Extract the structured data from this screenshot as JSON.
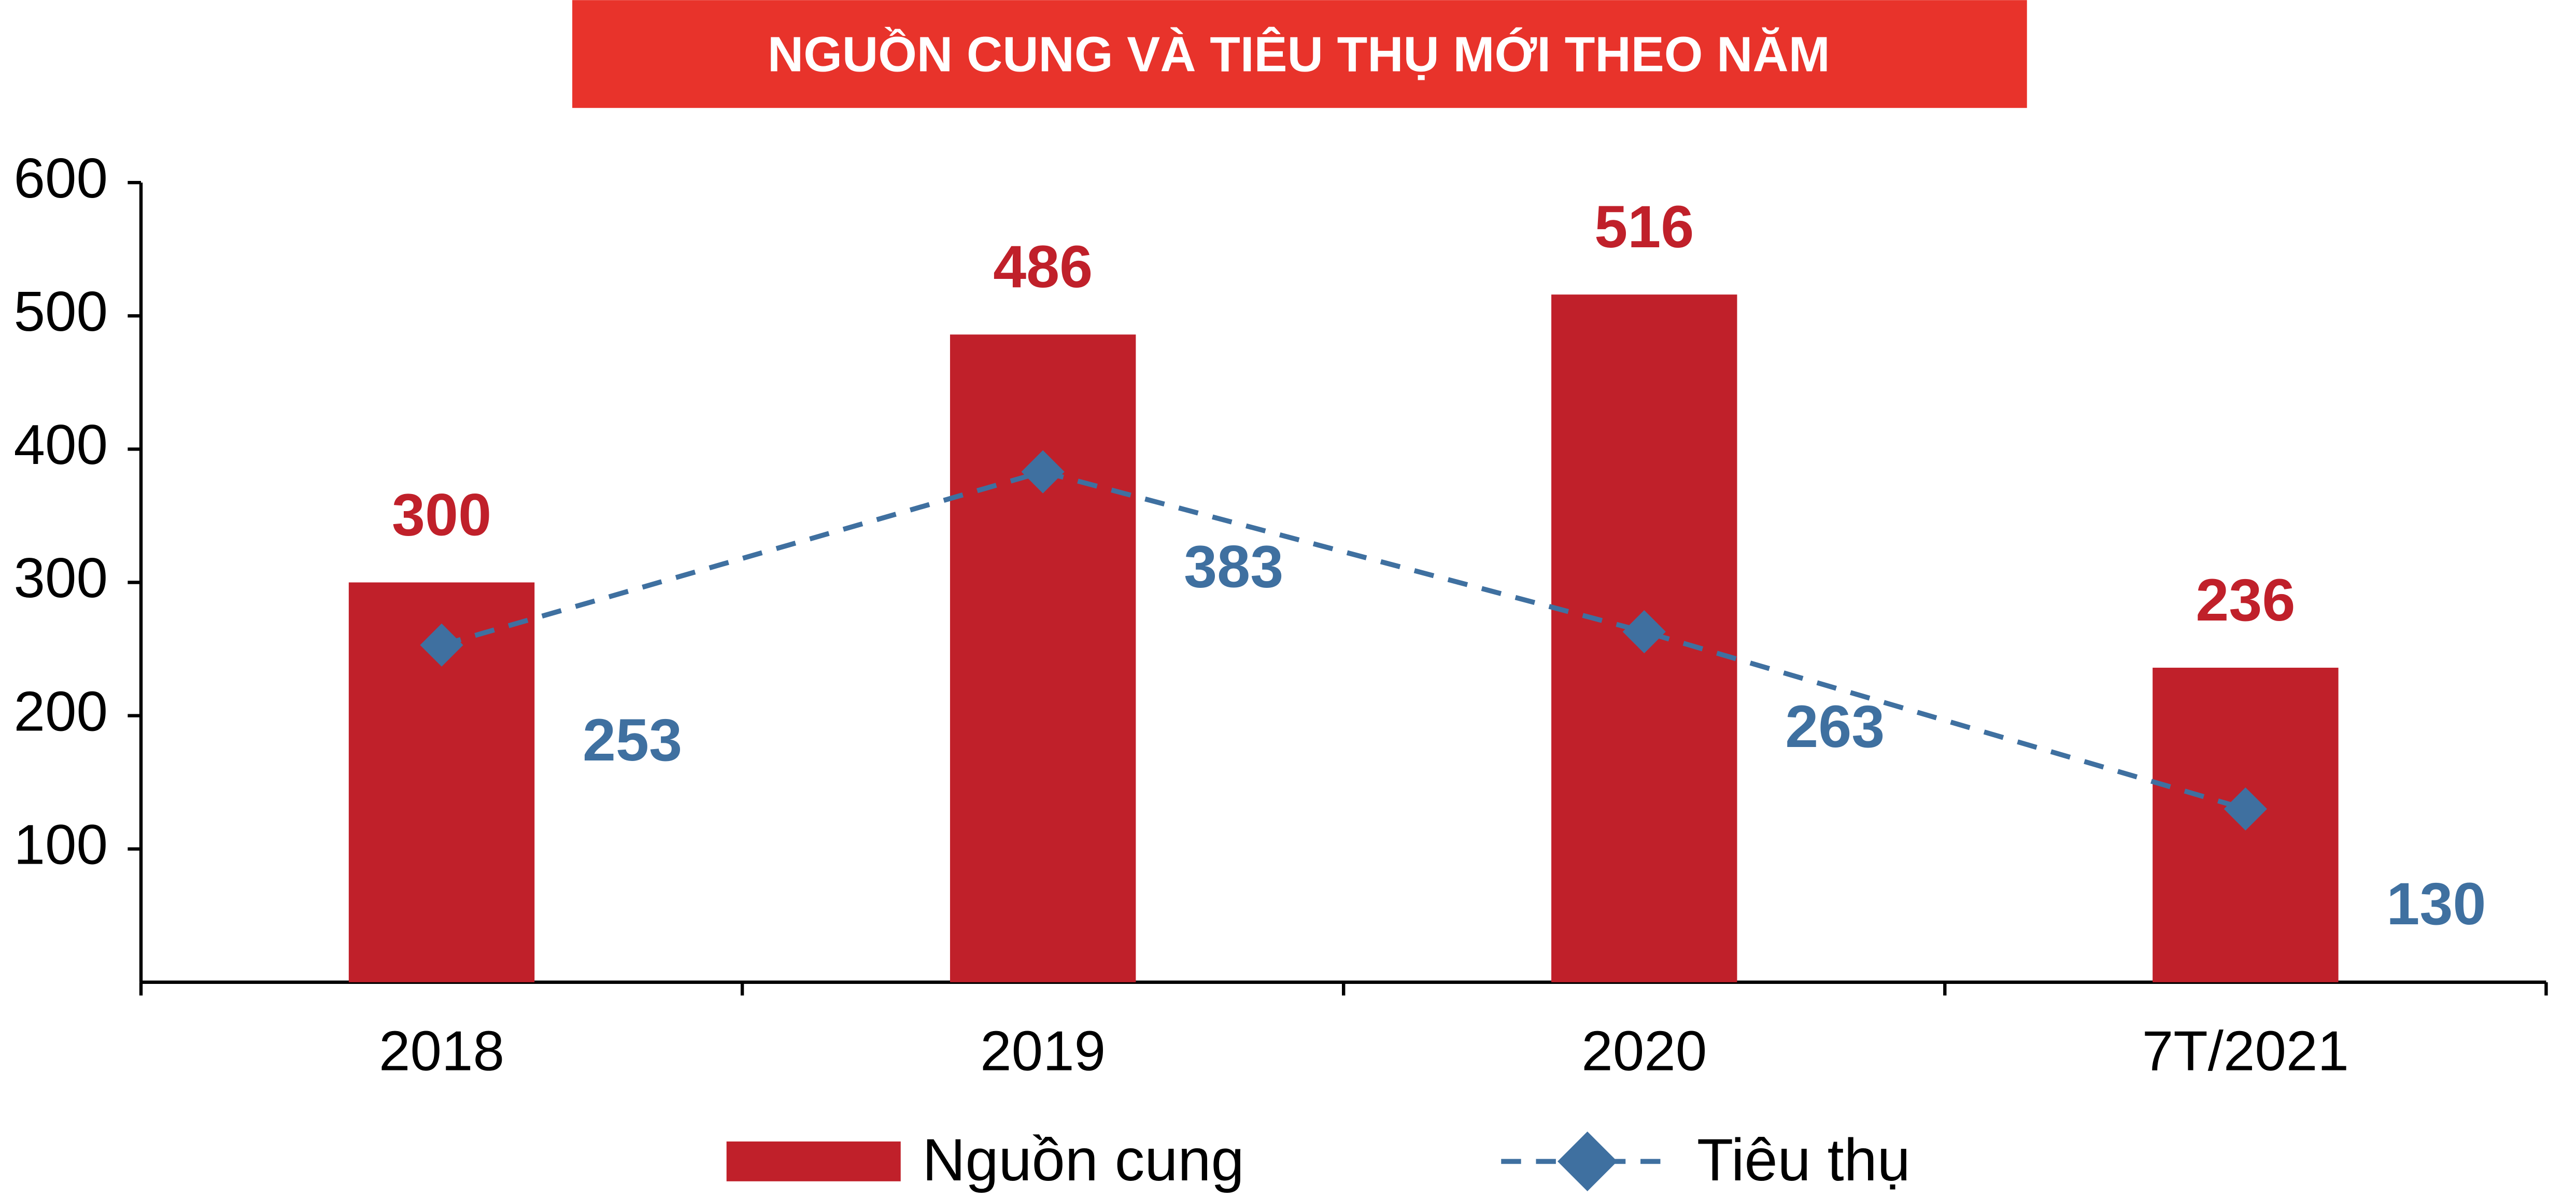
{
  "chart_data": {
    "type": "bar_line",
    "title": "NGUỒN CUNG VÀ TIÊU THỤ MỚI THEO NĂM",
    "categories": [
      "2018",
      "2019",
      "2020",
      "7T/2021"
    ],
    "series": [
      {
        "name": "Nguồn cung",
        "type": "bar",
        "color": "#c0202a",
        "values": [
          300,
          486,
          516,
          236
        ]
      },
      {
        "name": "Tiêu thụ",
        "type": "line",
        "color": "#3f70a0",
        "values": [
          253,
          383,
          263,
          130
        ]
      }
    ],
    "ylim": [
      0,
      600
    ],
    "yticks": [
      100,
      200,
      300,
      400,
      500,
      600
    ],
    "grid": false,
    "legend": "bottom"
  }
}
